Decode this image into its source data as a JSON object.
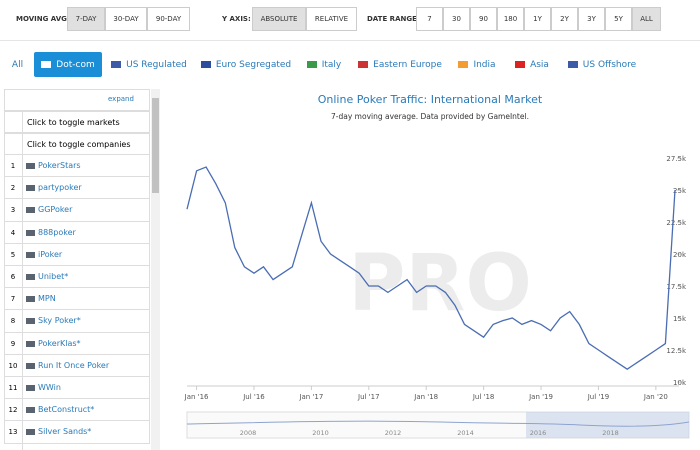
{
  "controls": {
    "moving_avg": {
      "label": "MOVING AVG:",
      "options": [
        "7-DAY",
        "30-DAY",
        "90-DAY"
      ],
      "active": 0
    },
    "y_axis": {
      "label": "Y AXIS:",
      "options": [
        "ABSOLUTE",
        "RELATIVE"
      ],
      "active": 0
    },
    "date_range": {
      "label": "DATE RANGE:",
      "options": [
        "7",
        "30",
        "90",
        "180",
        "1Y",
        "2Y",
        "3Y",
        "5Y",
        "ALL"
      ],
      "active": 8
    }
  },
  "tabs": {
    "items": [
      "All",
      "Dot-com",
      "US Regulated",
      "Euro Segregated",
      "Italy",
      "Eastern Europe",
      "India",
      "Asia",
      "US Offshore"
    ],
    "active": 1
  },
  "sidebar": {
    "expand": "expand",
    "toggle_markets": "Click to toggle markets",
    "toggle_companies": "Click to toggle companies",
    "rows": [
      [
        "1",
        "PokerStars"
      ],
      [
        "2",
        "partypoker"
      ],
      [
        "3",
        "GGPoker"
      ],
      [
        "4",
        "888poker"
      ],
      [
        "5",
        "iPoker"
      ],
      [
        "6",
        "Unibet*"
      ],
      [
        "7",
        "MPN"
      ],
      [
        "8",
        "Sky Poker*"
      ],
      [
        "9",
        "PokerKlas*"
      ],
      [
        "10",
        "Run It Once Poker"
      ],
      [
        "11",
        "WWin"
      ],
      [
        "12",
        "BetConstruct*"
      ],
      [
        "13",
        "Silver Sands*"
      ]
    ]
  },
  "watermark": "PRO",
  "chart_data": {
    "type": "line",
    "title": "Online Poker Traffic: International Market",
    "subtitle": "7-day moving average. Data provided by GameIntel.",
    "x": [
      "2015-12",
      "2016-01",
      "2016-02",
      "2016-03",
      "2016-04",
      "2016-05",
      "2016-06",
      "2016-07",
      "2016-08",
      "2016-09",
      "2016-10",
      "2016-11",
      "2016-12",
      "2017-01",
      "2017-02",
      "2017-03",
      "2017-04",
      "2017-05",
      "2017-06",
      "2017-07",
      "2017-08",
      "2017-09",
      "2017-10",
      "2017-11",
      "2017-12",
      "2018-01",
      "2018-02",
      "2018-03",
      "2018-04",
      "2018-05",
      "2018-06",
      "2018-07",
      "2018-08",
      "2018-09",
      "2018-10",
      "2018-11",
      "2018-12",
      "2019-01",
      "2019-02",
      "2019-03",
      "2019-04",
      "2019-05",
      "2019-06",
      "2019-07",
      "2019-08",
      "2019-09",
      "2019-10",
      "2019-11",
      "2019-12",
      "2020-01",
      "2020-02",
      "2020-03"
    ],
    "series": [
      {
        "name": "Dot-com",
        "color": "#4a6db3",
        "values": [
          23500,
          26500,
          26800,
          25500,
          24000,
          20500,
          19000,
          18500,
          19000,
          18000,
          18500,
          19000,
          21500,
          24000,
          21000,
          20000,
          19500,
          19000,
          18500,
          17500,
          17500,
          17000,
          17500,
          18000,
          17000,
          17500,
          17500,
          17000,
          16000,
          14500,
          14000,
          13500,
          14500,
          14800,
          15000,
          14500,
          14800,
          14500,
          14000,
          15000,
          15500,
          14500,
          13000,
          12500,
          12000,
          11500,
          11000,
          11500,
          12000,
          12500,
          13000,
          25000
        ]
      }
    ],
    "xlim": [
      "2015-12",
      "2020-03"
    ],
    "ylim": [
      10000,
      27500
    ],
    "xticks": [
      {
        "value": "2016-01",
        "label": "Jan '16"
      },
      {
        "value": "2016-07",
        "label": "Jul '16"
      },
      {
        "value": "2017-01",
        "label": "Jan '17"
      },
      {
        "value": "2017-07",
        "label": "Jul '17"
      },
      {
        "value": "2018-01",
        "label": "Jan '18"
      },
      {
        "value": "2018-07",
        "label": "Jul '18"
      },
      {
        "value": "2019-01",
        "label": "Jan '19"
      },
      {
        "value": "2019-07",
        "label": "Jul '19"
      },
      {
        "value": "2020-01",
        "label": "Jan '20"
      }
    ],
    "yticks": [
      {
        "value": 10000,
        "label": "10k"
      },
      {
        "value": 12500,
        "label": "12.5k"
      },
      {
        "value": 15000,
        "label": "15k"
      },
      {
        "value": 17500,
        "label": "17.5k"
      },
      {
        "value": 20000,
        "label": "20k"
      },
      {
        "value": 22500,
        "label": "22.5k"
      },
      {
        "value": 25000,
        "label": "25k"
      },
      {
        "value": 27500,
        "label": "27.5k"
      }
    ]
  },
  "navigator": {
    "labels": [
      "2008",
      "2010",
      "2012",
      "2014",
      "2016",
      "2018"
    ]
  }
}
